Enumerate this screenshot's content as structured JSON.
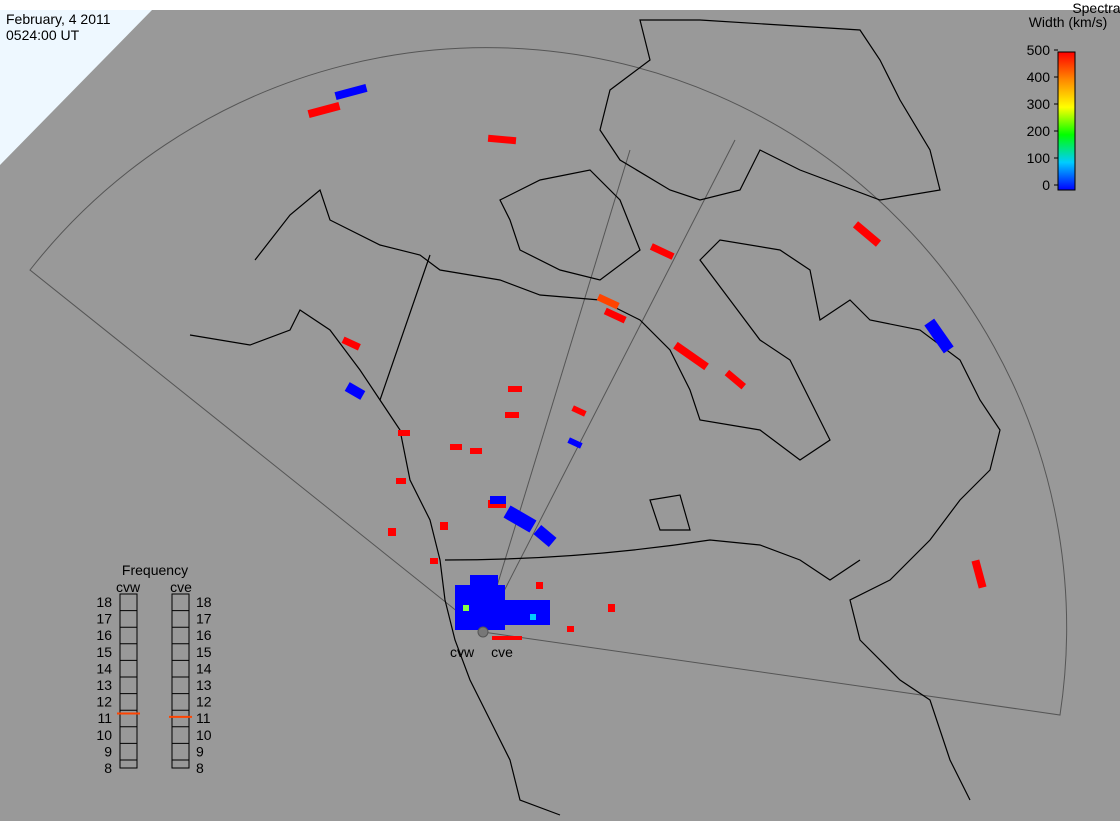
{
  "header": {
    "date": "February, 4 2011",
    "time": "0524:00 UT"
  },
  "colorbar": {
    "title_line1": "Spectral",
    "title_line2": "Width (km/s)",
    "ticks": [
      0,
      100,
      200,
      300,
      400,
      500
    ]
  },
  "frequency": {
    "title": "Frequency",
    "ticks": [
      8,
      9,
      10,
      11,
      12,
      13,
      14,
      15,
      16,
      17,
      18
    ],
    "radars": [
      {
        "name": "cvw",
        "value": 10.8
      },
      {
        "name": "cve",
        "value": 10.6
      }
    ]
  },
  "map": {
    "site_labels": [
      "cvw",
      "cve"
    ]
  }
}
